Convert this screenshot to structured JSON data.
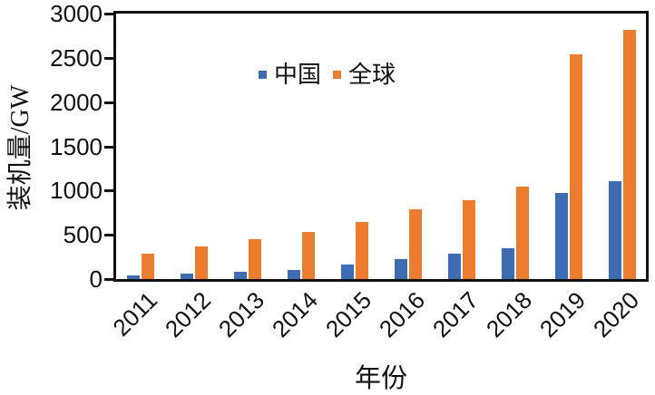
{
  "chart_data": {
    "type": "bar",
    "title": "",
    "xlabel": "年份",
    "ylabel": "装机量/GW",
    "categories": [
      "2011",
      "2012",
      "2013",
      "2014",
      "2015",
      "2016",
      "2017",
      "2018",
      "2019",
      "2020"
    ],
    "series": [
      {
        "name": "中国",
        "color": "#3E6CB2",
        "values": [
          45,
          60,
          85,
          105,
          165,
          225,
          290,
          350,
          970,
          1110
        ]
      },
      {
        "name": "全球",
        "color": "#ED7D2E",
        "values": [
          290,
          370,
          450,
          535,
          650,
          790,
          895,
          1045,
          2540,
          2815
        ]
      }
    ],
    "ylim": [
      0,
      3000
    ],
    "yticks": [
      0,
      500,
      1000,
      1500,
      2000,
      2500,
      3000
    ],
    "grid": false,
    "legend_position": "inside-top-left",
    "axis_color": "#111111",
    "background": "#ffffff"
  }
}
